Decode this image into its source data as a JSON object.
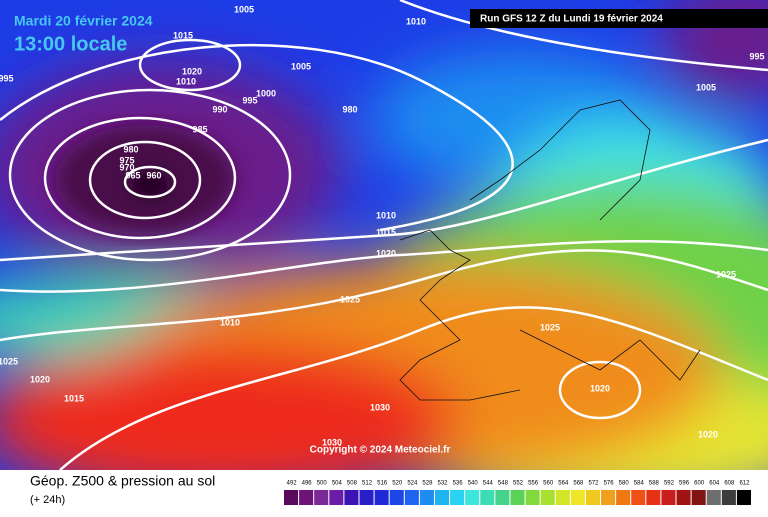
{
  "header": {
    "date": "Mardi 20 février 2024",
    "time": "13:00 locale",
    "run": "Run GFS 12 Z du Lundi 19 février 2024"
  },
  "copyright": "Copyright © 2024 Meteociel.fr",
  "footer": {
    "title": "Géop. Z500 & pression au sol",
    "lead": "(+ 24h)"
  },
  "colorbar": {
    "labels": [
      492,
      496,
      500,
      504,
      508,
      512,
      516,
      520,
      524,
      528,
      532,
      536,
      540,
      544,
      548,
      552,
      556,
      560,
      564,
      568,
      572,
      576,
      580,
      584,
      588,
      592,
      596,
      600,
      604,
      608,
      612
    ],
    "colors": [
      "#5a0a5a",
      "#6e1478",
      "#7a2a96",
      "#6a1ea8",
      "#3c14b4",
      "#2a1ec8",
      "#1e2ad8",
      "#1e46e6",
      "#1e64f0",
      "#1e8cf0",
      "#1eb4f0",
      "#28d2f0",
      "#3ce6dc",
      "#3cdcb4",
      "#46d28c",
      "#5ad25a",
      "#82d83c",
      "#a8e032",
      "#d2e628",
      "#f0e628",
      "#f0c81e",
      "#f0a01e",
      "#f07814",
      "#f05014",
      "#e63214",
      "#c81e1e",
      "#a01414",
      "#821414",
      "#6e6e6e",
      "#3c3c3c",
      "#000000"
    ]
  },
  "isobar_labels": [
    "1005",
    "1015",
    "1020",
    "1010",
    "1005",
    "1000",
    "995",
    "990",
    "980",
    "985",
    "980",
    "975",
    "970",
    "965",
    "960",
    "995",
    "1010",
    "995",
    "1005",
    "1010",
    "1015",
    "1020",
    "1025",
    "1010",
    "1025",
    "1025",
    "1025",
    "1020",
    "1015",
    "1030",
    "1020",
    "1020",
    "1030"
  ]
}
